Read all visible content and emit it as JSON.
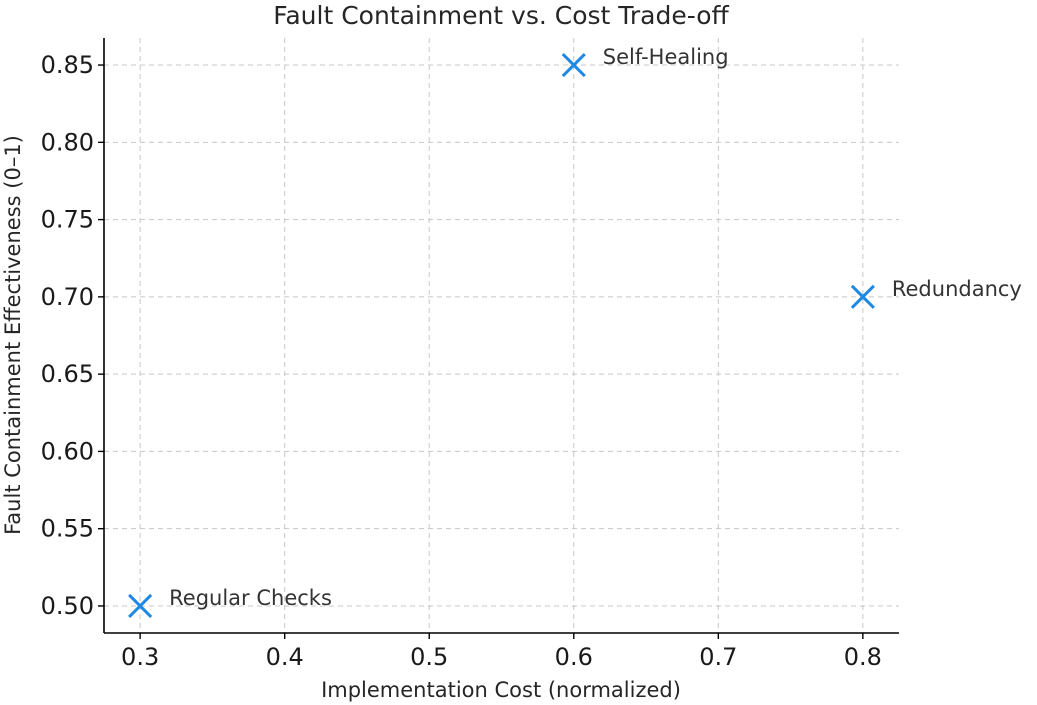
{
  "chart_data": {
    "type": "scatter",
    "title": "Fault Containment vs. Cost Trade-off",
    "xlabel": "Implementation Cost (normalized)",
    "ylabel": "Fault Containment Effectiveness (0–1)",
    "xlim": [
      0.275,
      0.825
    ],
    "ylim": [
      0.4825,
      0.8675
    ],
    "xticks": [
      "0.3",
      "0.4",
      "0.5",
      "0.6",
      "0.7",
      "0.8"
    ],
    "yticks": [
      "0.50",
      "0.55",
      "0.60",
      "0.65",
      "0.70",
      "0.75",
      "0.80",
      "0.85"
    ],
    "grid": true,
    "marker": "x",
    "marker_color": "#1e88e5",
    "points": [
      {
        "label": "Regular Checks",
        "x": 0.3,
        "y": 0.5
      },
      {
        "label": "Self-Healing",
        "x": 0.6,
        "y": 0.85
      },
      {
        "label": "Redundancy",
        "x": 0.8,
        "y": 0.7
      }
    ]
  }
}
